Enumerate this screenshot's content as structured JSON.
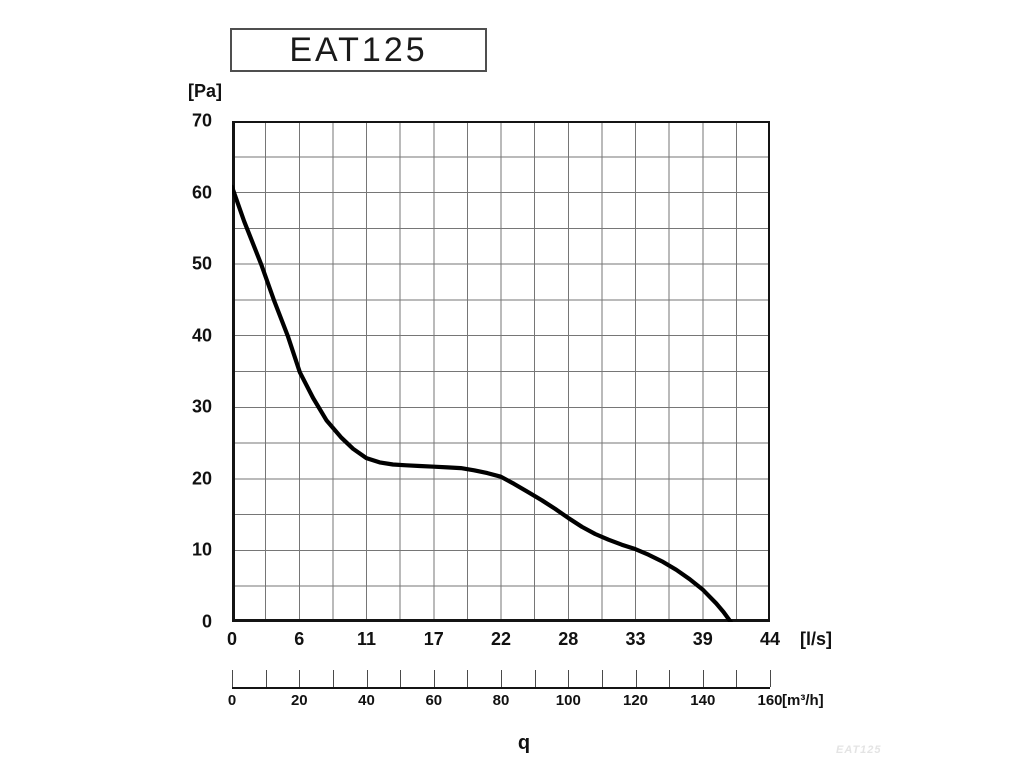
{
  "title": {
    "label": "EAT125"
  },
  "watermark": {
    "label": "EAT125"
  },
  "chart_data": {
    "type": "line",
    "title": "EAT125",
    "description": "Fan performance curve: static pressure [Pa] vs airflow q",
    "quantity_label": "q",
    "grid": true,
    "grid_color": "#767676",
    "frame_color": "#141414",
    "curve_color": "#000000",
    "y_axis": {
      "unit_label": "[Pa]",
      "min": 0,
      "max": 70,
      "major_step": 10,
      "minor_step": 5,
      "minor_divisions": 14,
      "tick_labels": [
        "70",
        "60",
        "50",
        "40",
        "30",
        "20",
        "10",
        "0"
      ]
    },
    "x_axis_ls": {
      "unit_label": "[l/s]",
      "min": 0,
      "max": 44.44,
      "minor_divisions": 16,
      "tick_labels": [
        "0",
        "6",
        "11",
        "17",
        "22",
        "28",
        "33",
        "39",
        "44"
      ]
    },
    "x_axis_m3h": {
      "unit_label": "[m³/h]",
      "min": 0,
      "max": 160,
      "tick_step": 10,
      "tick_count": 17,
      "tick_labels": [
        "0",
        "20",
        "40",
        "60",
        "80",
        "100",
        "120",
        "140",
        "160"
      ]
    },
    "series": [
      {
        "name": "EAT125 pressure curve",
        "units": "x in l/s, y in Pa",
        "points": [
          [
            0,
            60.8
          ],
          [
            1,
            56
          ],
          [
            2.4,
            50
          ],
          [
            3.5,
            44.8
          ],
          [
            4.6,
            40
          ],
          [
            5.6,
            34.9
          ],
          [
            6.7,
            31.3
          ],
          [
            7.8,
            28.2
          ],
          [
            9,
            25.8
          ],
          [
            10,
            24.2
          ],
          [
            11.1,
            22.9
          ],
          [
            12.2,
            22.3
          ],
          [
            13.3,
            22.0
          ],
          [
            14.4,
            21.9
          ],
          [
            15.5,
            21.8
          ],
          [
            16.7,
            21.7
          ],
          [
            17.8,
            21.6
          ],
          [
            18.9,
            21.5
          ],
          [
            20,
            21.2
          ],
          [
            21.1,
            20.8
          ],
          [
            22.2,
            20.3
          ],
          [
            23.3,
            19.3
          ],
          [
            24.4,
            18.2
          ],
          [
            25.6,
            17.0
          ],
          [
            26.7,
            15.8
          ],
          [
            27.8,
            14.5
          ],
          [
            28.9,
            13.3
          ],
          [
            30,
            12.3
          ],
          [
            31.1,
            11.5
          ],
          [
            32.2,
            10.8
          ],
          [
            33.3,
            10.2
          ],
          [
            34.4,
            9.4
          ],
          [
            35.6,
            8.4
          ],
          [
            36.7,
            7.3
          ],
          [
            37.8,
            6.0
          ],
          [
            38.9,
            4.5
          ],
          [
            40,
            2.6
          ],
          [
            40.6,
            1.4
          ],
          [
            41.2,
            0
          ]
        ]
      }
    ]
  }
}
